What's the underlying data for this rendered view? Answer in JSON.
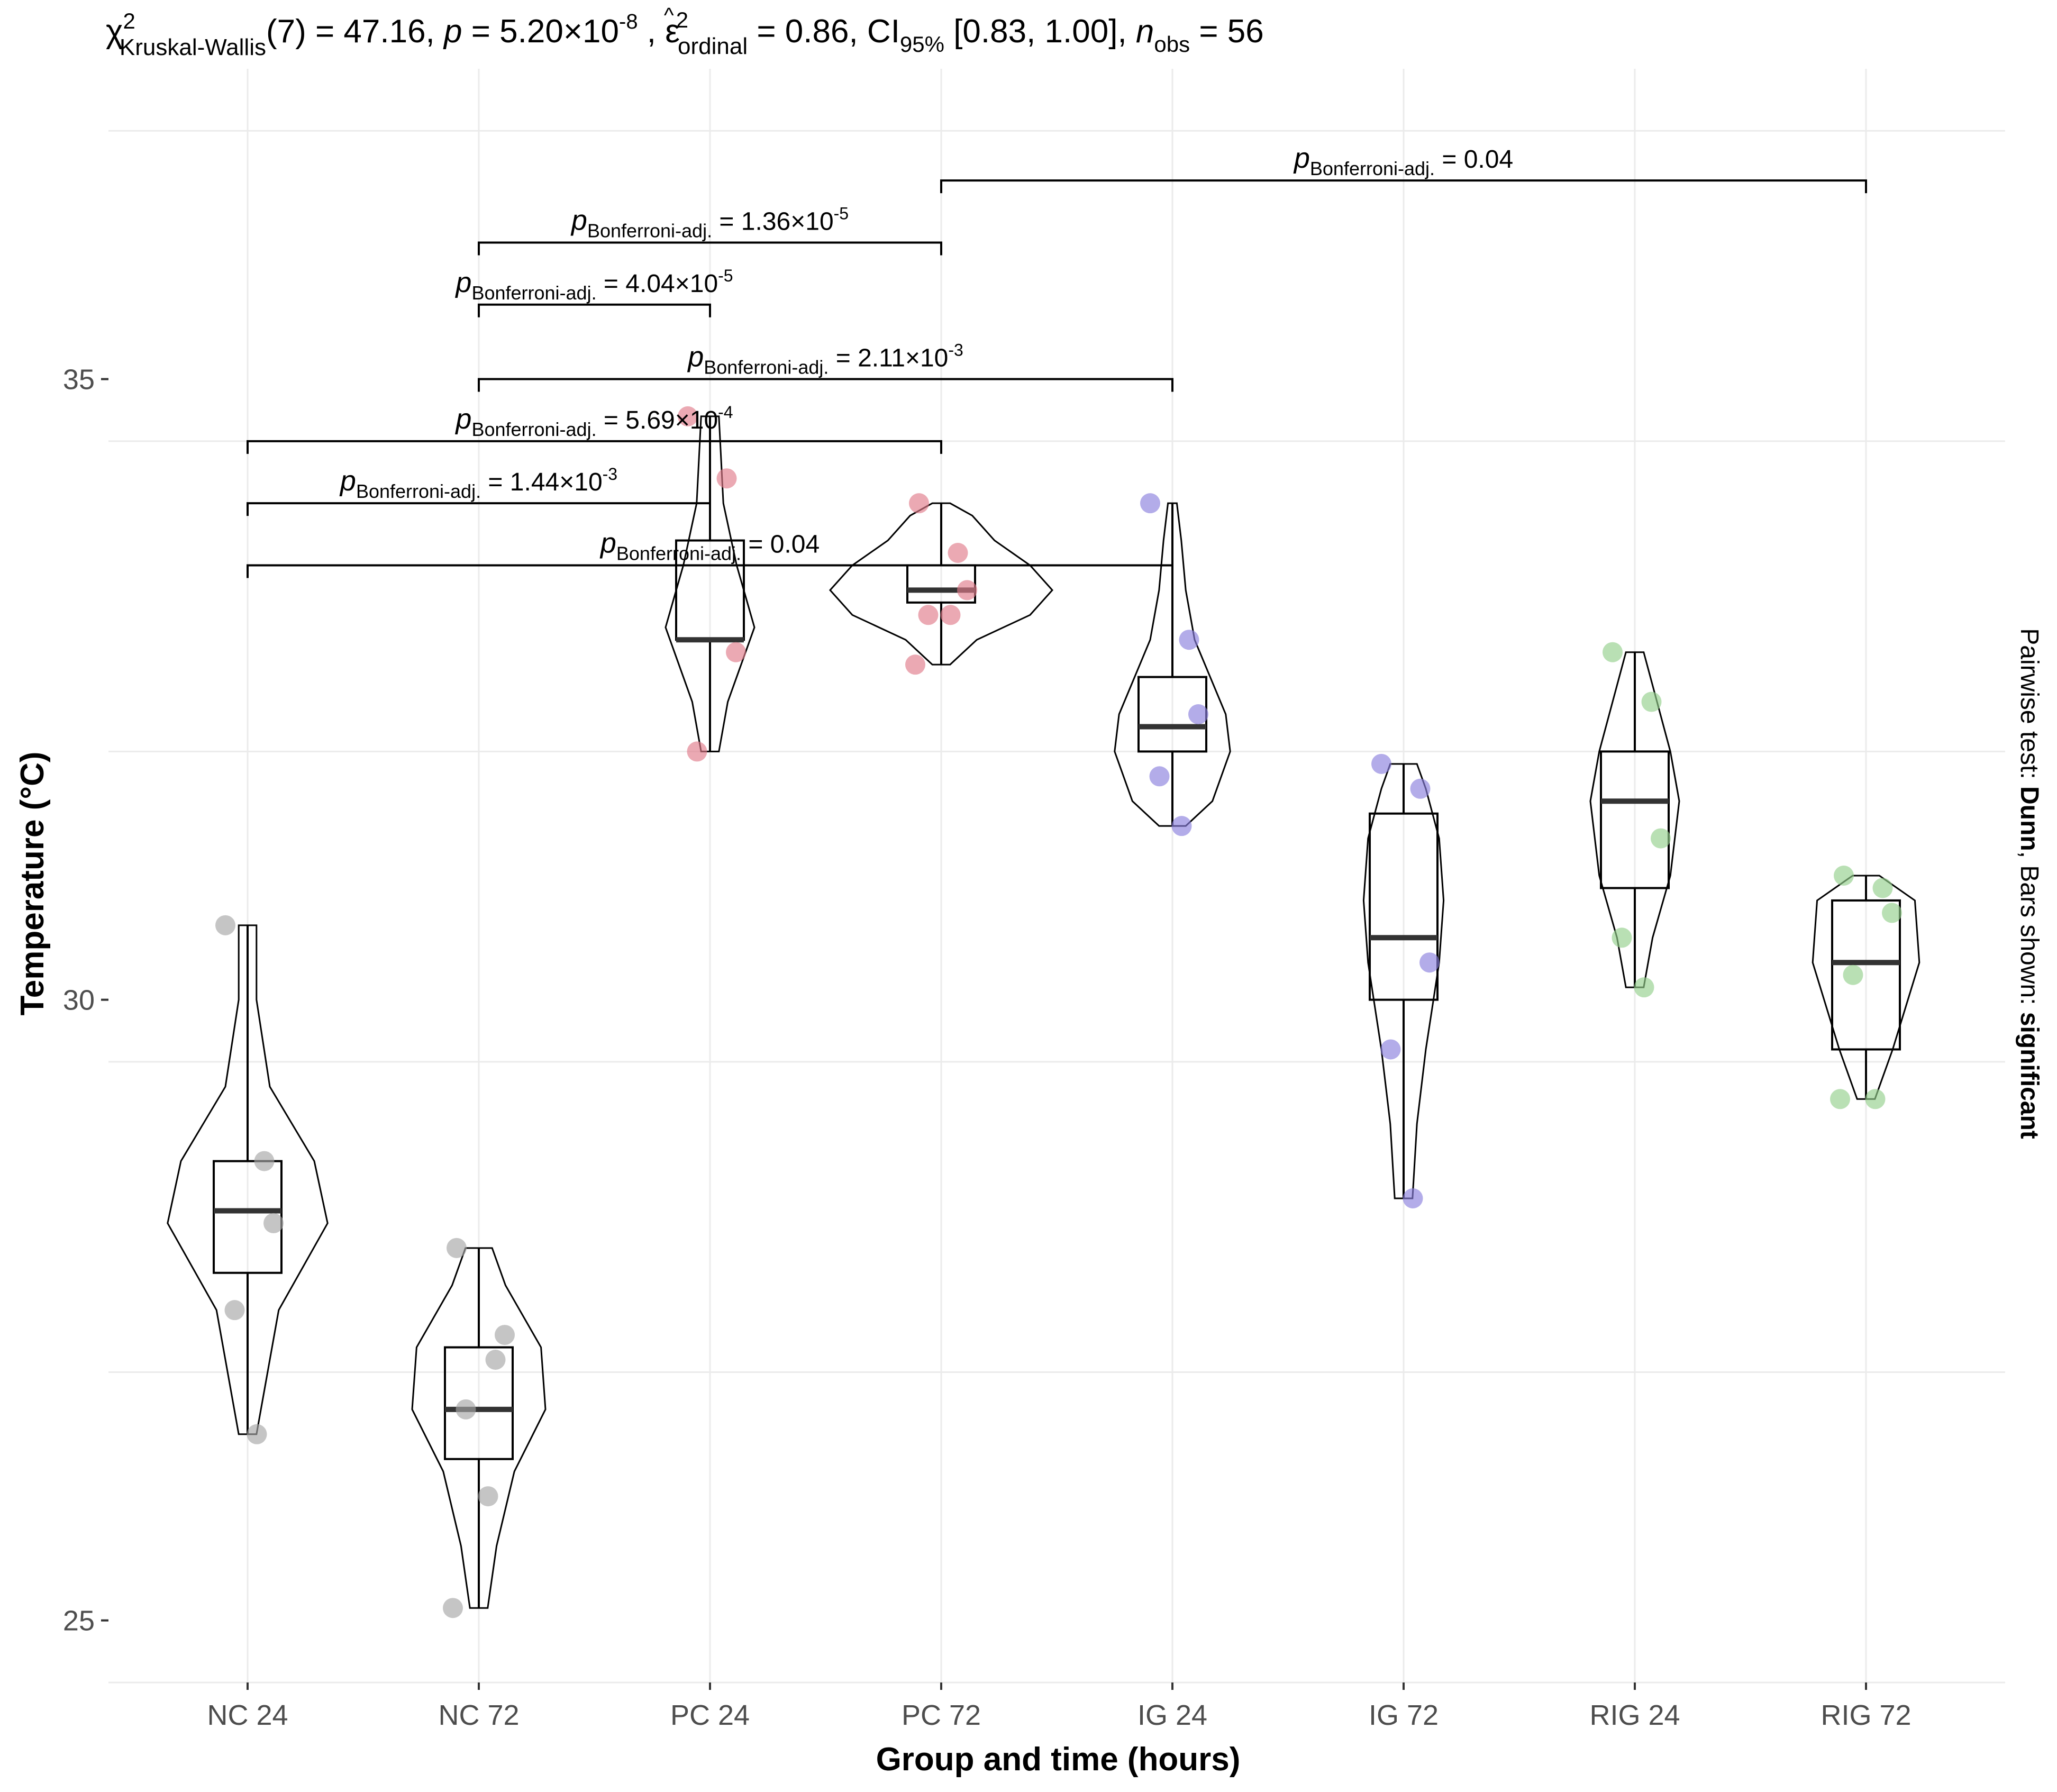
{
  "chart_data": {
    "type": "violin-box-scatter",
    "title_parts": {
      "chi": "χ",
      "chi_sup": "2",
      "chi_sub": "Kruskal-Wallis",
      "df": "(7) = 47.16, ",
      "p_sym": "p",
      "p_eq": " = 5.20×10",
      "p_exp": "-8",
      "sep1": " , ",
      "eps": "ε",
      "eps_hat": "^",
      "eps_sup": "2",
      "eps_sub": "ordinal",
      "eps_eq": " = 0.86, CI",
      "ci_sub": "95%",
      "ci_rest": " [0.83, 1.00], ",
      "n_sym": "n",
      "n_sub": "obs",
      "n_eq": " = 56"
    },
    "xlabel": "Group and time (hours)",
    "ylabel": "Temperature (°C)",
    "right_caption": {
      "prefix": "Pairwise test: ",
      "test": "Dunn",
      "middle": ", Bars shown: ",
      "shown": "significant"
    },
    "ylim": [
      24.5,
      37.5
    ],
    "yticks": [
      25,
      30,
      35
    ],
    "ytick_labels": [
      "25",
      "30",
      "35"
    ],
    "grid": true,
    "colors": {
      "NC": "#a6a6a6",
      "PC": "#e07b8a",
      "IG": "#8b80dd",
      "RIG": "#94cf8c"
    },
    "groups": [
      {
        "name": "NC 24",
        "color_key": "NC",
        "q1": 27.8,
        "median": 28.3,
        "q3": 28.7,
        "min": 26.5,
        "max": 30.6,
        "points": [
          30.6,
          28.7,
          28.2,
          27.5,
          26.5
        ],
        "violin": [
          [
            26.5,
            0.02
          ],
          [
            26.9,
            0.04
          ],
          [
            27.5,
            0.07
          ],
          [
            28.2,
            0.18
          ],
          [
            28.7,
            0.15
          ],
          [
            29.3,
            0.05
          ],
          [
            30.0,
            0.02
          ],
          [
            30.6,
            0.02
          ]
        ]
      },
      {
        "name": "NC 72",
        "color_key": "NC",
        "q1": 26.3,
        "median": 26.7,
        "q3": 27.2,
        "min": 25.1,
        "max": 28.0,
        "points": [
          28.0,
          27.1,
          27.3,
          26.7,
          26.0,
          25.1
        ],
        "violin": [
          [
            25.1,
            0.02
          ],
          [
            25.6,
            0.04
          ],
          [
            26.2,
            0.08
          ],
          [
            26.7,
            0.15
          ],
          [
            27.2,
            0.14
          ],
          [
            27.7,
            0.06
          ],
          [
            28.0,
            0.03
          ]
        ]
      },
      {
        "name": "PC 24",
        "color_key": "PC",
        "q1": 32.9,
        "median": 32.9,
        "q3": 33.7,
        "min": 32.0,
        "max": 34.7,
        "points": [
          34.7,
          34.2,
          32.8,
          32.0
        ],
        "violin": [
          [
            32.0,
            0.02
          ],
          [
            32.4,
            0.04
          ],
          [
            32.8,
            0.08
          ],
          [
            33.0,
            0.1
          ],
          [
            33.5,
            0.06
          ],
          [
            34.0,
            0.03
          ],
          [
            34.7,
            0.02
          ]
        ]
      },
      {
        "name": "PC 72",
        "color_key": "PC",
        "q1": 33.2,
        "median": 33.3,
        "q3": 33.5,
        "min": 32.7,
        "max": 34.0,
        "points": [
          34.0,
          33.6,
          33.3,
          33.1,
          33.1,
          32.7
        ],
        "violin": [
          [
            32.7,
            0.02
          ],
          [
            32.9,
            0.08
          ],
          [
            33.1,
            0.2
          ],
          [
            33.3,
            0.25
          ],
          [
            33.5,
            0.2
          ],
          [
            33.7,
            0.12
          ],
          [
            33.9,
            0.07
          ],
          [
            34.0,
            0.02
          ]
        ]
      },
      {
        "name": "IG 24",
        "color_key": "IG",
        "q1": 32.0,
        "median": 32.2,
        "q3": 32.6,
        "min": 31.4,
        "max": 34.0,
        "points": [
          34.0,
          32.9,
          32.3,
          31.8,
          31.4
        ],
        "violin": [
          [
            31.4,
            0.03
          ],
          [
            31.6,
            0.09
          ],
          [
            32.0,
            0.13
          ],
          [
            32.3,
            0.12
          ],
          [
            32.9,
            0.05
          ],
          [
            33.3,
            0.03
          ],
          [
            33.7,
            0.02
          ],
          [
            34.0,
            0.01
          ]
        ]
      },
      {
        "name": "IG 72",
        "color_key": "IG",
        "q1": 30.0,
        "median": 30.5,
        "q3": 31.5,
        "min": 28.4,
        "max": 31.9,
        "points": [
          31.9,
          31.7,
          30.3,
          29.6,
          28.4
        ],
        "violin": [
          [
            28.4,
            0.02
          ],
          [
            29.0,
            0.03
          ],
          [
            29.6,
            0.05
          ],
          [
            30.3,
            0.08
          ],
          [
            30.8,
            0.09
          ],
          [
            31.3,
            0.08
          ],
          [
            31.7,
            0.05
          ],
          [
            31.9,
            0.03
          ]
        ]
      },
      {
        "name": "RIG 24",
        "color_key": "RIG",
        "q1": 30.9,
        "median": 31.6,
        "q3": 32.0,
        "min": 30.1,
        "max": 32.8,
        "points": [
          32.8,
          32.4,
          31.3,
          30.5,
          30.1
        ],
        "violin": [
          [
            30.1,
            0.02
          ],
          [
            30.5,
            0.04
          ],
          [
            31.0,
            0.08
          ],
          [
            31.6,
            0.1
          ],
          [
            32.0,
            0.08
          ],
          [
            32.4,
            0.05
          ],
          [
            32.8,
            0.02
          ]
        ]
      },
      {
        "name": "RIG 72",
        "color_key": "RIG",
        "q1": 29.6,
        "median": 30.3,
        "q3": 30.8,
        "min": 29.2,
        "max": 31.0,
        "points": [
          31.0,
          30.9,
          30.7,
          30.2,
          29.2,
          29.2
        ],
        "violin": [
          [
            29.2,
            0.02
          ],
          [
            29.6,
            0.06
          ],
          [
            30.3,
            0.12
          ],
          [
            30.8,
            0.11
          ],
          [
            31.0,
            0.03
          ]
        ]
      }
    ],
    "pairwise": [
      {
        "from": "PC 72",
        "to": "RIG 72",
        "y": 36.6,
        "p_label": "p",
        "p_sub": "Bonferroni-adj.",
        "value": " = 0.04",
        "exp": ""
      },
      {
        "from": "NC 72",
        "to": "PC 72",
        "y": 36.1,
        "p_label": "p",
        "p_sub": "Bonferroni-adj.",
        "value": " = 1.36×10",
        "exp": "-5"
      },
      {
        "from": "NC 72",
        "to": "PC 24",
        "y": 35.6,
        "p_label": "p",
        "p_sub": "Bonferroni-adj.",
        "value": " = 4.04×10",
        "exp": "-5"
      },
      {
        "from": "NC 72",
        "to": "IG 24",
        "y": 35.0,
        "p_label": "p",
        "p_sub": "Bonferroni-adj.",
        "value": " = 2.11×10",
        "exp": "-3"
      },
      {
        "from": "NC 24",
        "to": "PC 72",
        "y": 34.5,
        "p_label": "p",
        "p_sub": "Bonferroni-adj.",
        "value": " = 5.69×10",
        "exp": "-4"
      },
      {
        "from": "NC 24",
        "to": "PC 24",
        "y": 34.0,
        "p_label": "p",
        "p_sub": "Bonferroni-adj.",
        "value": " = 1.44×10",
        "exp": "-3"
      },
      {
        "from": "NC 24",
        "to": "IG 24",
        "y": 33.5,
        "p_label": "p",
        "p_sub": "Bonferroni-adj.",
        "value": " = 0.04",
        "exp": ""
      }
    ]
  }
}
